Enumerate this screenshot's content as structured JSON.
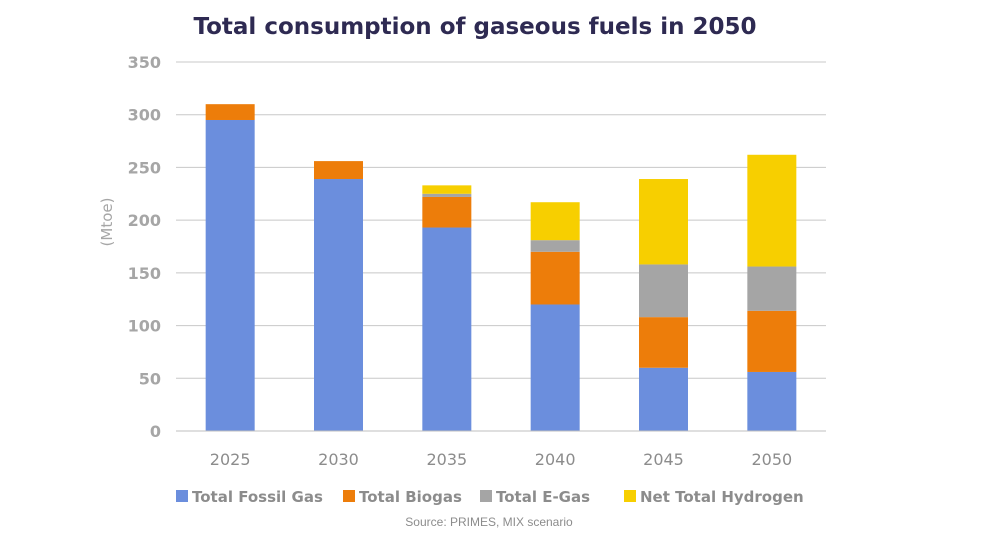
{
  "chart_data": {
    "type": "bar",
    "stacked": true,
    "title": "Total consumption of gaseous fuels in 2050",
    "ylabel": "(Mtoe)",
    "xlabel": "",
    "ylim": [
      0,
      350
    ],
    "yticks": [
      0,
      50,
      100,
      150,
      200,
      250,
      300,
      350
    ],
    "grid": true,
    "legend_position": "bottom",
    "categories": [
      "2025",
      "2030",
      "2035",
      "2040",
      "2045",
      "2050"
    ],
    "series": [
      {
        "name": "Total Fossil Gas",
        "color": "#6b8edd",
        "values": [
          295,
          239,
          193,
          120,
          60,
          56
        ]
      },
      {
        "name": "Total Biogas",
        "color": "#ed7d0a",
        "values": [
          15,
          17,
          29,
          50,
          48,
          58
        ]
      },
      {
        "name": "Total E-Gas",
        "color": "#a5a5a5",
        "values": [
          0,
          0,
          3,
          11,
          50,
          42
        ]
      },
      {
        "name": "Net Total Hydrogen",
        "color": "#f7cf00",
        "values": [
          0,
          0,
          8,
          36,
          81,
          106
        ]
      }
    ],
    "source": "Source: PRIMES, MIX scenario"
  }
}
